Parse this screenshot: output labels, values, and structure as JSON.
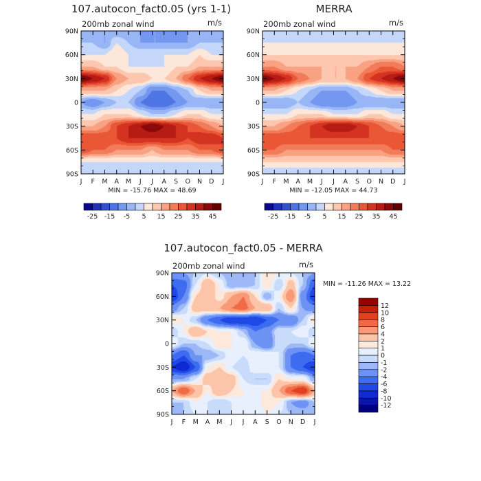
{
  "chart_data": [
    {
      "type": "heatmap",
      "title": "107.autocon_fact0.05 (yrs 1-1)",
      "subtitle": "200mb zonal wind",
      "units": "m/s",
      "x_labels": [
        "J",
        "F",
        "M",
        "A",
        "M",
        "J",
        "J",
        "A",
        "S",
        "O",
        "N",
        "D",
        "J"
      ],
      "y_labels": [
        "90N",
        "60N",
        "30N",
        "0",
        "30S",
        "60S",
        "90S"
      ],
      "y_range": [
        90,
        -90
      ],
      "stats": "MIN = -15.76 MAX =  48.69",
      "colorbar": {
        "orientation": "horizontal",
        "labels": [
          "-25",
          "-15",
          "-5",
          "5",
          "15",
          "25",
          "35",
          "45"
        ]
      },
      "rows": [
        {
          "lat": 90,
          "values": [
            -5,
            -5,
            -5,
            -5,
            -5,
            -5,
            -5,
            -5,
            -5,
            -5,
            -5,
            -5,
            -5
          ]
        },
        {
          "lat": 75,
          "values": [
            0,
            0,
            -5,
            5,
            0,
            -5,
            -5,
            -5,
            -5,
            -5,
            0,
            0,
            0
          ]
        },
        {
          "lat": 60,
          "values": [
            5,
            5,
            5,
            10,
            5,
            5,
            5,
            5,
            5,
            5,
            10,
            5,
            5
          ]
        },
        {
          "lat": 45,
          "values": [
            15,
            15,
            10,
            10,
            5,
            5,
            5,
            5,
            10,
            10,
            15,
            15,
            15
          ]
        },
        {
          "lat": 30,
          "values": [
            45,
            40,
            35,
            20,
            15,
            15,
            10,
            10,
            15,
            25,
            35,
            40,
            45
          ]
        },
        {
          "lat": 15,
          "values": [
            15,
            15,
            15,
            10,
            5,
            0,
            -10,
            -10,
            -5,
            0,
            10,
            15,
            15
          ]
        },
        {
          "lat": 0,
          "values": [
            -5,
            -10,
            -5,
            0,
            0,
            -10,
            -15,
            -15,
            -10,
            -5,
            -5,
            -5,
            -5
          ]
        },
        {
          "lat": -15,
          "values": [
            5,
            5,
            10,
            10,
            10,
            5,
            0,
            0,
            5,
            10,
            10,
            5,
            5
          ]
        },
        {
          "lat": -30,
          "values": [
            15,
            15,
            20,
            30,
            35,
            40,
            45,
            40,
            35,
            30,
            25,
            20,
            15
          ]
        },
        {
          "lat": -45,
          "values": [
            30,
            30,
            30,
            30,
            35,
            35,
            35,
            35,
            35,
            30,
            35,
            35,
            30
          ]
        },
        {
          "lat": -60,
          "values": [
            30,
            25,
            25,
            20,
            20,
            20,
            15,
            20,
            20,
            20,
            25,
            25,
            30
          ]
        },
        {
          "lat": -75,
          "values": [
            5,
            5,
            5,
            5,
            5,
            5,
            5,
            5,
            5,
            5,
            5,
            5,
            5
          ]
        },
        {
          "lat": -90,
          "values": [
            0,
            0,
            0,
            0,
            0,
            0,
            0,
            0,
            0,
            0,
            0,
            0,
            0
          ]
        }
      ]
    },
    {
      "type": "heatmap",
      "title": "MERRA",
      "subtitle": "200mb zonal wind",
      "units": "m/s",
      "x_labels": [
        "J",
        "F",
        "M",
        "A",
        "M",
        "J",
        "J",
        "A",
        "S",
        "O",
        "N",
        "D",
        "J"
      ],
      "y_labels": [
        "90N",
        "60N",
        "30N",
        "0",
        "30S",
        "60S",
        "90S"
      ],
      "y_range": [
        90,
        -90
      ],
      "stats": "MIN = -12.05 MAX =  44.73",
      "colorbar": {
        "orientation": "horizontal",
        "labels": [
          "-25",
          "-15",
          "-5",
          "5",
          "15",
          "25",
          "35",
          "45"
        ]
      },
      "rows": [
        {
          "lat": 90,
          "values": [
            0,
            0,
            0,
            0,
            0,
            0,
            0,
            0,
            0,
            0,
            0,
            0,
            0
          ]
        },
        {
          "lat": 75,
          "values": [
            5,
            5,
            5,
            5,
            5,
            5,
            5,
            5,
            5,
            5,
            5,
            5,
            5
          ]
        },
        {
          "lat": 60,
          "values": [
            10,
            10,
            10,
            10,
            10,
            10,
            10,
            10,
            10,
            10,
            10,
            10,
            10
          ]
        },
        {
          "lat": 45,
          "values": [
            20,
            20,
            15,
            15,
            15,
            15,
            15,
            15,
            15,
            20,
            25,
            25,
            20
          ]
        },
        {
          "lat": 30,
          "values": [
            45,
            40,
            35,
            25,
            20,
            15,
            15,
            15,
            20,
            30,
            35,
            40,
            45
          ]
        },
        {
          "lat": 15,
          "values": [
            15,
            15,
            10,
            5,
            0,
            -5,
            -5,
            -5,
            0,
            5,
            10,
            15,
            15
          ]
        },
        {
          "lat": 0,
          "values": [
            -5,
            -5,
            -5,
            0,
            -5,
            -10,
            -10,
            -10,
            -5,
            -5,
            -5,
            -5,
            -5
          ]
        },
        {
          "lat": -15,
          "values": [
            5,
            5,
            5,
            10,
            10,
            10,
            5,
            5,
            5,
            10,
            10,
            5,
            5
          ]
        },
        {
          "lat": -30,
          "values": [
            15,
            15,
            20,
            25,
            30,
            35,
            40,
            40,
            35,
            30,
            25,
            20,
            15
          ]
        },
        {
          "lat": -45,
          "values": [
            30,
            30,
            30,
            30,
            30,
            30,
            30,
            30,
            30,
            30,
            30,
            30,
            30
          ]
        },
        {
          "lat": -60,
          "values": [
            25,
            25,
            20,
            20,
            20,
            20,
            20,
            20,
            20,
            20,
            20,
            25,
            25
          ]
        },
        {
          "lat": -75,
          "values": [
            10,
            10,
            10,
            10,
            10,
            10,
            10,
            10,
            10,
            10,
            10,
            10,
            10
          ]
        },
        {
          "lat": -90,
          "values": [
            0,
            0,
            0,
            0,
            0,
            0,
            0,
            0,
            0,
            0,
            0,
            0,
            0
          ]
        }
      ]
    },
    {
      "type": "heatmap",
      "title": "107.autocon_fact0.05 - MERRA",
      "subtitle": "200mb zonal wind",
      "units": "m/s",
      "x_labels": [
        "J",
        "F",
        "M",
        "A",
        "M",
        "J",
        "J",
        "A",
        "S",
        "O",
        "N",
        "D",
        "J"
      ],
      "y_labels": [
        "90N",
        "60N",
        "30N",
        "0",
        "30S",
        "60S",
        "90S"
      ],
      "y_range": [
        90,
        -90
      ],
      "stats": "MIN = -11.26 MAX =  13.22",
      "colorbar": {
        "orientation": "vertical",
        "labels": [
          "12",
          "10",
          "8",
          "6",
          "4",
          "2",
          "1",
          "0",
          "-1",
          "-2",
          "-4",
          "-6",
          "-8",
          "-10",
          "-12"
        ]
      },
      "rows": [
        {
          "lat": 90,
          "values": [
            -2,
            -2,
            -1,
            0,
            -1,
            -2,
            -1,
            -1,
            2,
            1,
            0,
            -1,
            -2
          ]
        },
        {
          "lat": 75,
          "values": [
            -6,
            -5,
            0,
            4,
            1,
            -2,
            -2,
            -1,
            2,
            -1,
            3,
            -1,
            -6
          ]
        },
        {
          "lat": 60,
          "values": [
            -8,
            -4,
            2,
            4,
            1,
            4,
            6,
            2,
            -2,
            1,
            6,
            -3,
            -8
          ]
        },
        {
          "lat": 45,
          "values": [
            -3,
            -1,
            3,
            3,
            4,
            6,
            7,
            4,
            4,
            -1,
            2,
            -2,
            -3
          ]
        },
        {
          "lat": 30,
          "values": [
            2,
            1,
            -1,
            -4,
            -6,
            -8,
            -8,
            -8,
            -6,
            -4,
            -4,
            -1,
            2
          ]
        },
        {
          "lat": 15,
          "values": [
            -1,
            1,
            4,
            2,
            1,
            1,
            -1,
            -4,
            -3,
            0,
            0,
            1,
            -1
          ]
        },
        {
          "lat": 0,
          "values": [
            1,
            -1,
            -1,
            0,
            2,
            1,
            1,
            -2,
            -4,
            0,
            -1,
            -1,
            1
          ]
        },
        {
          "lat": -15,
          "values": [
            -4,
            -6,
            -2,
            -2,
            -1,
            1,
            0,
            1,
            1,
            0,
            -4,
            -5,
            -4
          ]
        },
        {
          "lat": -30,
          "values": [
            -8,
            -10,
            -6,
            1,
            2,
            0,
            -1,
            1,
            1,
            0,
            -4,
            -6,
            -8
          ]
        },
        {
          "lat": -45,
          "values": [
            -2,
            -2,
            0,
            3,
            4,
            3,
            0,
            -1,
            -1,
            2,
            1,
            1,
            -2
          ]
        },
        {
          "lat": -60,
          "values": [
            4,
            8,
            4,
            1,
            4,
            2,
            1,
            1,
            1,
            4,
            8,
            10,
            4
          ]
        },
        {
          "lat": -75,
          "values": [
            -1,
            -1,
            1,
            0,
            -1,
            0,
            1,
            0,
            2,
            1,
            -2,
            -3,
            -1
          ]
        },
        {
          "lat": -90,
          "values": [
            -1,
            -1,
            0,
            0,
            -1,
            0,
            1,
            0,
            1,
            0,
            -1,
            -1,
            -1
          ]
        }
      ]
    }
  ],
  "scales": {
    "full": {
      "levels": [
        -25,
        -20,
        -15,
        -10,
        -5,
        0,
        5,
        10,
        15,
        20,
        25,
        30,
        35,
        40,
        45
      ],
      "colors": [
        "#08088f",
        "#1f31b8",
        "#3050d0",
        "#4f75e4",
        "#7497ef",
        "#98b6f6",
        "#c4d7fb",
        "#fde7da",
        "#fcc7ae",
        "#f8a283",
        "#f27b59",
        "#e95737",
        "#d53322",
        "#b71c14",
        "#8a0a0a",
        "#620000"
      ]
    },
    "diff": {
      "levels": [
        -12,
        -10,
        -8,
        -6,
        -4,
        -2,
        -1,
        0,
        1,
        2,
        4,
        6,
        8,
        10,
        12
      ],
      "colors": [
        "#000080",
        "#0a14a8",
        "#0f2ad2",
        "#1f48e6",
        "#3e6cf0",
        "#6c92f4",
        "#9cb8f7",
        "#c9dbfb",
        "#e8f0fe",
        "#fde8dc",
        "#fcc4a8",
        "#f89a77",
        "#f06a46",
        "#e2401f",
        "#c51e0b",
        "#980000"
      ]
    }
  }
}
